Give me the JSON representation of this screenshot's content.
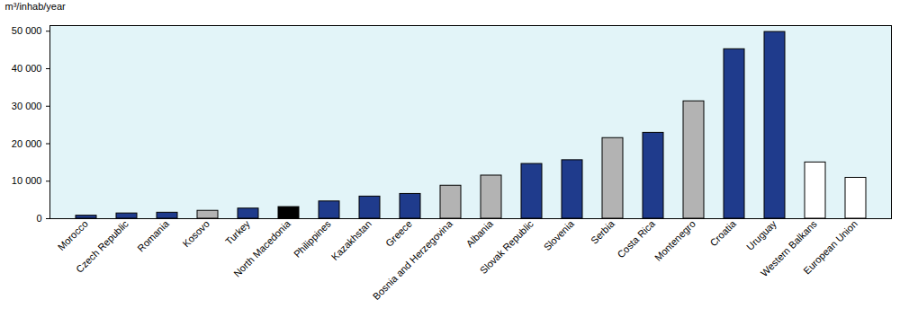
{
  "chart_data": {
    "type": "bar",
    "y_label": "m³/inhab/year",
    "categories": [
      "Morocco",
      "Czech Republic",
      "Romania",
      "Kosovo",
      "Turkey",
      "North Macedonia",
      "Philippines",
      "Kazakhstan",
      "Greece",
      "Bosnia and Herzegovina",
      "Albania",
      "Slovak Republic",
      "Slovenia",
      "Serbia",
      "Costa Rica",
      "Montenegro",
      "Croatia",
      "Uruguay",
      "Western Balkans",
      "European Union"
    ],
    "values": [
      800,
      1400,
      1600,
      2100,
      2700,
      3100,
      4600,
      5900,
      6600,
      8800,
      11500,
      14600,
      15600,
      21500,
      22900,
      31300,
      45200,
      49800,
      15000,
      10900
    ],
    "colors": [
      "#1f3b8c",
      "#1f3b8c",
      "#1f3b8c",
      "#b3b3b3",
      "#1f3b8c",
      "#000000",
      "#1f3b8c",
      "#1f3b8c",
      "#1f3b8c",
      "#b3b3b3",
      "#b3b3b3",
      "#1f3b8c",
      "#1f3b8c",
      "#b3b3b3",
      "#1f3b8c",
      "#b3b3b3",
      "#1f3b8c",
      "#1f3b8c",
      "#ffffff",
      "#ffffff"
    ],
    "ylim": [
      0,
      51500
    ],
    "yticks": [
      0,
      {
        "value": 10000,
        "label": "10 000"
      },
      {
        "value": 20000,
        "label": "20 000"
      },
      {
        "value": 30000,
        "label": "30 000"
      },
      {
        "value": 40000,
        "label": "40 000"
      },
      {
        "value": 50000,
        "label": "50 000"
      }
    ],
    "grid": false
  }
}
